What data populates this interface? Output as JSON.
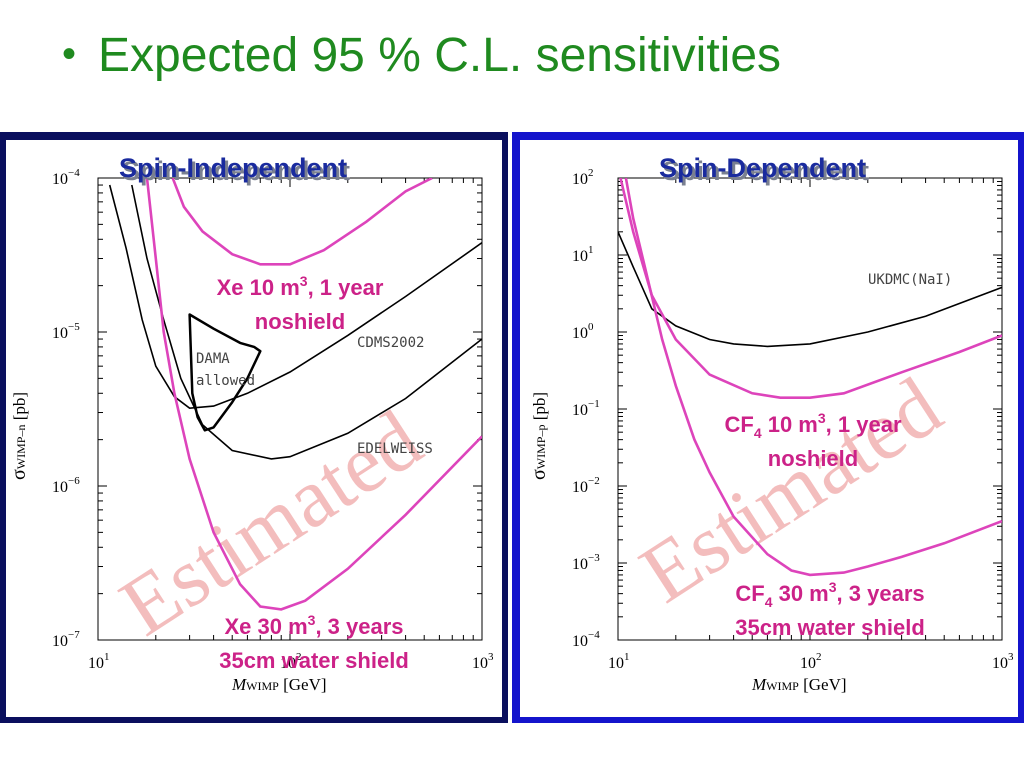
{
  "slide": {
    "bullet": "•",
    "title": "Expected 95 % C.L. sensitivities"
  },
  "colors": {
    "title_green": "#1f8a1f",
    "panel_title_blue": "#1a2b9e",
    "pink": "#dd44bb",
    "pink_text": "#cc2288",
    "watermark": "#f0a8a8",
    "frame_left": "#0a0f5e",
    "frame_right": "#1414cc"
  },
  "chart_data": [
    {
      "type": "line",
      "title": "Spin-Independent",
      "xlabel": "M",
      "xlabel_sub": "WIMP",
      "xlabel_unit": " [GeV]",
      "ylabel": "σ",
      "ylabel_sub": "WIMP–n",
      "ylabel_unit": " [pb]",
      "xscale": "log",
      "yscale": "log",
      "xlim": [
        10,
        1000
      ],
      "ylim": [
        1e-07,
        0.0001
      ],
      "x_ticks": [
        {
          "base": "10",
          "exp": "1",
          "value": 10
        },
        {
          "base": "10",
          "exp": "2",
          "value": 100
        },
        {
          "base": "10",
          "exp": "3",
          "value": 1000
        }
      ],
      "y_ticks": [
        {
          "base": "10",
          "exp": "−7",
          "value": 1e-07
        },
        {
          "base": "10",
          "exp": "−6",
          "value": 1e-06
        },
        {
          "base": "10",
          "exp": "−5",
          "value": 1e-05
        },
        {
          "base": "10",
          "exp": "−4",
          "value": 0.0001
        }
      ],
      "watermark": "Estimated",
      "series": [
        {
          "name": "CDMS2002",
          "color": "#000000",
          "x": [
            11.5,
            14,
            17,
            20,
            25,
            30,
            40,
            60,
            100,
            200,
            400,
            1000
          ],
          "y": [
            9e-05,
            3.5e-05,
            1.2e-05,
            6e-06,
            3.8e-06,
            3.2e-06,
            3.3e-06,
            4e-06,
            5.5e-06,
            9.5e-06,
            1.7e-05,
            3.8e-05
          ]
        },
        {
          "name": "EDELWEISS",
          "color": "#000000",
          "x": [
            15,
            18,
            22,
            27,
            35,
            50,
            80,
            100,
            200,
            400,
            1000
          ],
          "y": [
            9e-05,
            3e-05,
            1.2e-05,
            5e-06,
            2.5e-06,
            1.7e-06,
            1.5e-06,
            1.55e-06,
            2.2e-06,
            3.7e-06,
            9e-06
          ]
        },
        {
          "name": "Xe 10 m³, 1 year noshield",
          "color": "#dd44bb",
          "x": [
            24.5,
            28,
            35,
            50,
            70,
            100,
            150,
            250,
            400,
            550
          ],
          "y": [
            0.0001,
            6.5e-05,
            4.5e-05,
            3.2e-05,
            2.75e-05,
            2.75e-05,
            3.4e-05,
            5.2e-05,
            8.2e-05,
            0.0001
          ]
        },
        {
          "name": "Xe 30 m³, 3 years 35cm water shield",
          "color": "#dd44bb",
          "x": [
            18,
            20,
            22,
            25,
            30,
            40,
            55,
            70,
            90,
            120,
            200,
            400,
            1000
          ],
          "y": [
            0.0001,
            3e-05,
            1e-05,
            4e-06,
            1.5e-06,
            5e-07,
            2.3e-07,
            1.65e-07,
            1.58e-07,
            1.8e-07,
            2.9e-07,
            6.5e-07,
            2.1e-06
          ]
        }
      ],
      "region": {
        "name": "DAMA allowed",
        "x": [
          30,
          40,
          55,
          65,
          70,
          60,
          50,
          40,
          36,
          33,
          31,
          30
        ],
        "y": [
          1.3e-05,
          1.05e-05,
          8.5e-06,
          8e-06,
          7.5e-06,
          5e-06,
          3.5e-06,
          2.4e-06,
          2.3e-06,
          2.8e-06,
          4e-06,
          1.3e-05
        ]
      },
      "curve_labels": [
        "CDMS2002",
        "EDELWEISS"
      ],
      "region_label": [
        "DAMA",
        "allowed"
      ],
      "annotations": {
        "xe10_line1": "Xe 10 m",
        "xe10_sup": "3",
        "xe10_line1_end": ", 1 year",
        "xe10_line2": "noshield",
        "xe30_line1": "Xe 30 m",
        "xe30_sup": "3",
        "xe30_line1_end": ", 3 years",
        "xe30_line2": "35cm water shield"
      }
    },
    {
      "type": "line",
      "title": "Spin-Dependent",
      "xlabel": "M",
      "xlabel_sub": "WIMP",
      "xlabel_unit": " [GeV]",
      "ylabel": "σ",
      "ylabel_sub": "WIMP–p",
      "ylabel_unit": " [pb]",
      "xscale": "log",
      "yscale": "log",
      "xlim": [
        10,
        1000
      ],
      "ylim": [
        0.0001,
        100
      ],
      "x_ticks": [
        {
          "base": "10",
          "exp": "1",
          "value": 10
        },
        {
          "base": "10",
          "exp": "2",
          "value": 100
        },
        {
          "base": "10",
          "exp": "3",
          "value": 1000
        }
      ],
      "y_ticks": [
        {
          "base": "10",
          "exp": "−4",
          "value": 0.0001
        },
        {
          "base": "10",
          "exp": "−3",
          "value": 0.001
        },
        {
          "base": "10",
          "exp": "−2",
          "value": 0.01
        },
        {
          "base": "10",
          "exp": "−1",
          "value": 0.1
        },
        {
          "base": "10",
          "exp": "0",
          "value": 1
        },
        {
          "base": "10",
          "exp": "1",
          "value": 10
        },
        {
          "base": "10",
          "exp": "2",
          "value": 100
        }
      ],
      "watermark": "Estimated",
      "series": [
        {
          "name": "UKDMC(NaI)",
          "color": "#000000",
          "x": [
            10,
            12,
            15,
            20,
            30,
            40,
            60,
            100,
            200,
            400,
            1000
          ],
          "y": [
            20,
            7,
            2,
            1.2,
            0.8,
            0.7,
            0.65,
            0.7,
            1,
            1.6,
            3.8
          ]
        },
        {
          "name": "CF4 10 m³, 1 year noshield",
          "color": "#dd44bb",
          "x": [
            10.3,
            12,
            15,
            20,
            30,
            50,
            70,
            100,
            150,
            300,
            600,
            1000
          ],
          "y": [
            100,
            20,
            3,
            0.8,
            0.28,
            0.16,
            0.14,
            0.14,
            0.16,
            0.3,
            0.55,
            0.9
          ]
        },
        {
          "name": "CF4 30 m³, 3 years 35cm water shield",
          "color": "#dd44bb",
          "x": [
            11,
            12,
            14,
            17,
            20,
            25,
            30,
            40,
            60,
            80,
            100,
            150,
            200,
            300,
            500,
            1000
          ],
          "y": [
            100,
            30,
            6,
            0.8,
            0.2,
            0.04,
            0.015,
            0.004,
            0.0013,
            0.0008,
            0.0007,
            0.00075,
            0.0009,
            0.0012,
            0.0018,
            0.0035
          ]
        }
      ],
      "curve_labels": [
        "UKDMC(NaI)"
      ],
      "annotations": {
        "cf10_line1": "CF",
        "cf10_sub": "4",
        "cf10_line1_mid": " 10 m",
        "cf10_sup": "3",
        "cf10_line1_end": ", 1 year",
        "cf10_line2": "noshield",
        "cf30_line1": "CF",
        "cf30_sub": "4",
        "cf30_line1_mid": " 30 m",
        "cf30_sup": "3",
        "cf30_line1_end": ", 3 years",
        "cf30_line2": "35cm water shield"
      }
    }
  ]
}
